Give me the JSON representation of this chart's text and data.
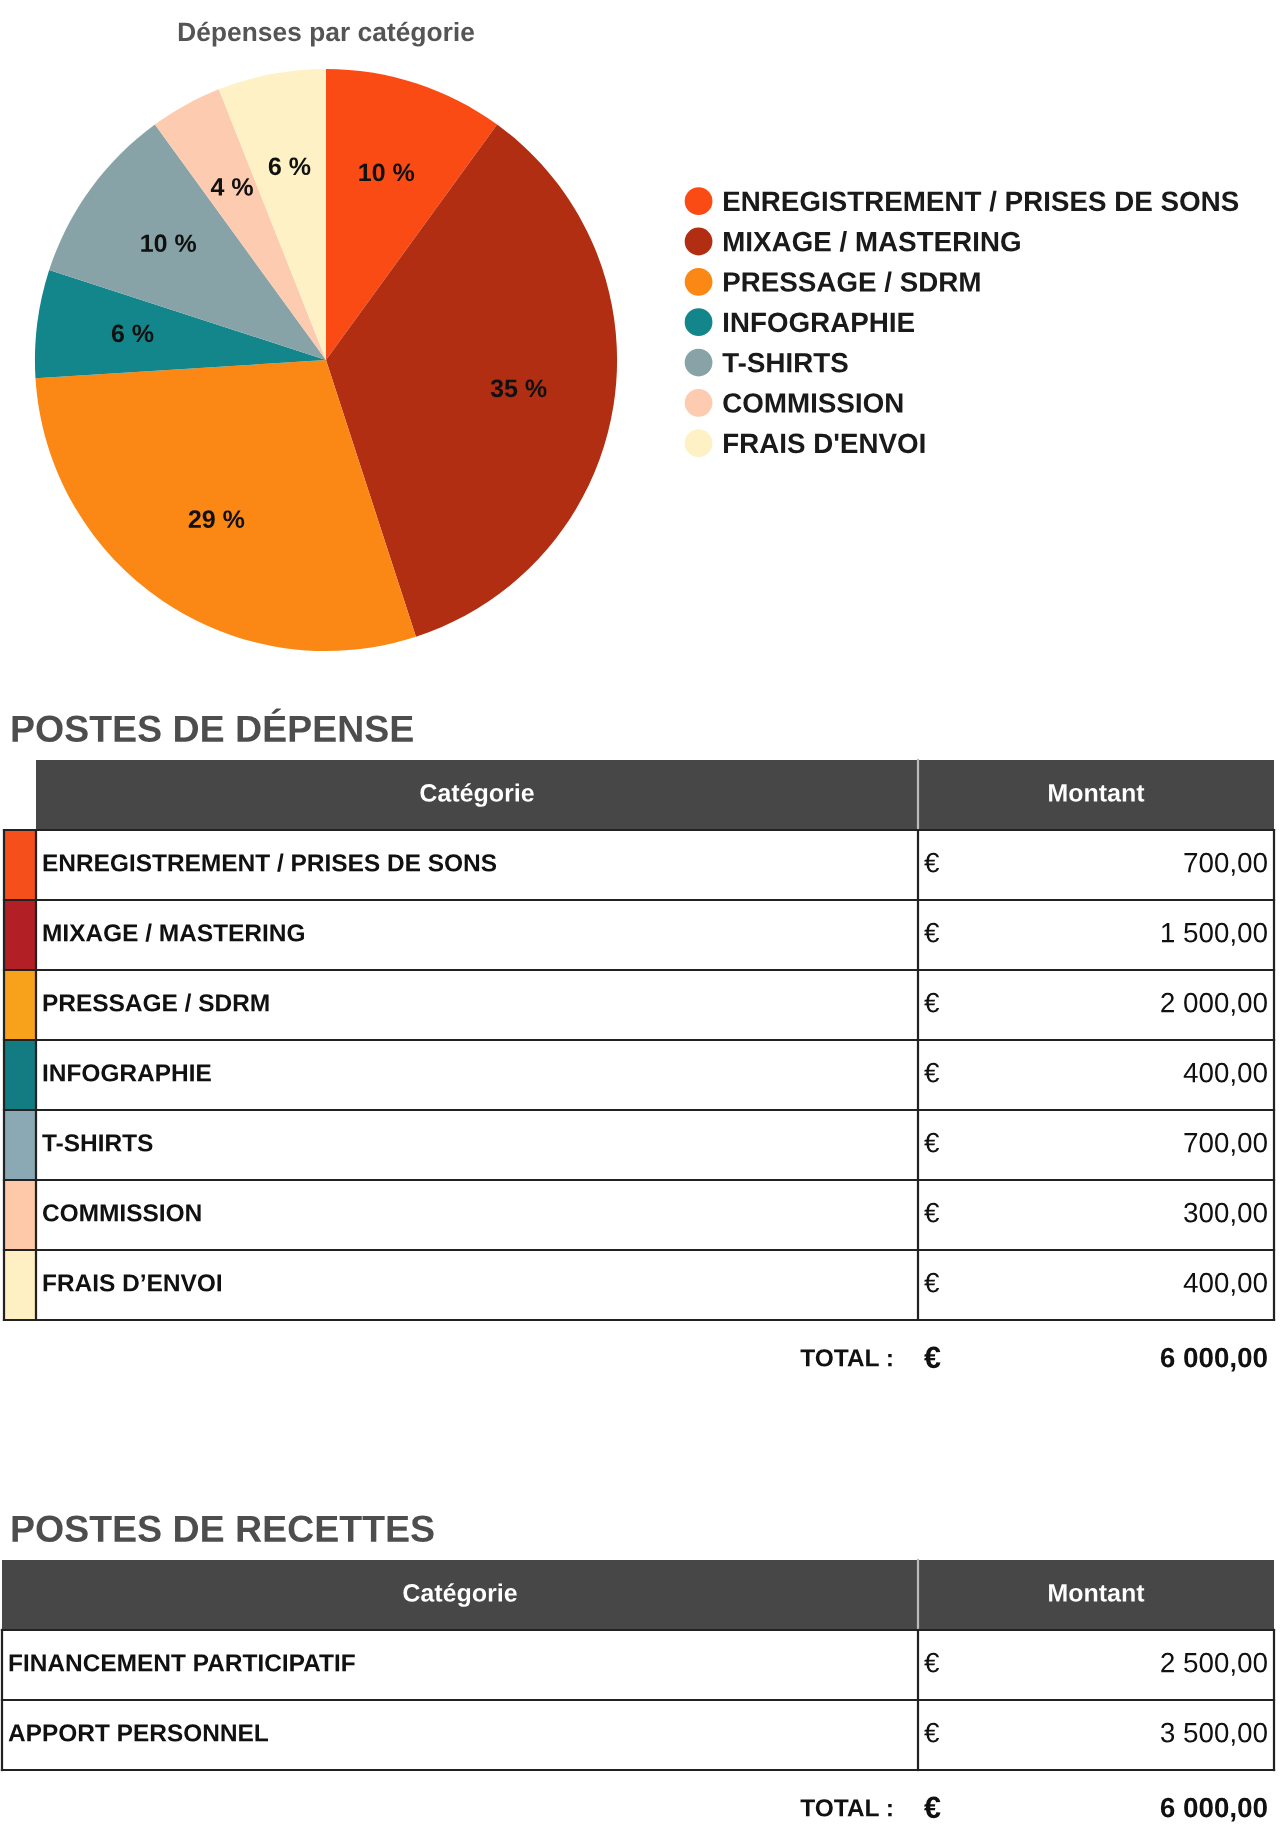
{
  "chart_data": [
    {
      "type": "pie",
      "title": "Dépenses par catégorie",
      "categories": [
        "ENREGISTREMENT / PRISES DE SONS",
        "MIXAGE / MASTERING",
        "PRESSAGE / SDRM",
        "INFOGRAPHIE",
        "T-SHIRTS",
        "COMMISSION",
        "FRAIS D'ENVOI"
      ],
      "values": [
        10,
        35,
        29,
        6,
        10,
        4,
        6
      ],
      "colors": [
        "#fb4b15",
        "#b12e12",
        "#fb8814",
        "#12868a",
        "#88a3a8",
        "#fdcbb0",
        "#fef1c5"
      ],
      "value_labels": [
        "10 %",
        "35 %",
        "29 %",
        "6 %",
        "10 %",
        "4 %",
        "6 %"
      ],
      "legend": "right"
    },
    {
      "type": "other",
      "title": "POSTES DE DÉPENSE",
      "categories": [
        "ENREGISTREMENT / PRISES DE SONS",
        "MIXAGE / MASTERING",
        "PRESSAGE / SDRM",
        "INFOGRAPHIE",
        "T-SHIRTS",
        "COMMISSION",
        "FRAIS D’ENVOI"
      ],
      "values": [
        700,
        1500,
        2000,
        400,
        700,
        300,
        400
      ],
      "value_labels": [
        "700,00",
        "1 500,00",
        "2 000,00",
        "400,00",
        "700,00",
        "300,00",
        "400,00"
      ],
      "colors": [
        "#f5501b",
        "#b21f24",
        "#f8a21c",
        "#137c82",
        "#8ba9b4",
        "#fdc9a9",
        "#fef0c2"
      ],
      "annotations": [
        "Catégorie",
        "Montant",
        "€",
        "TOTAL :"
      ],
      "totals": [
        "6 000,00"
      ]
    },
    {
      "type": "other",
      "title": "POSTES DE RECETTES",
      "categories": [
        "FINANCEMENT PARTICIPATIF",
        "APPORT PERSONNEL"
      ],
      "values": [
        2500,
        3500
      ],
      "value_labels": [
        "2 500,00",
        "3 500,00"
      ],
      "annotations": [
        "Catégorie",
        "Montant",
        "€",
        "TOTAL :"
      ],
      "totals": [
        "6 000,00"
      ]
    }
  ]
}
